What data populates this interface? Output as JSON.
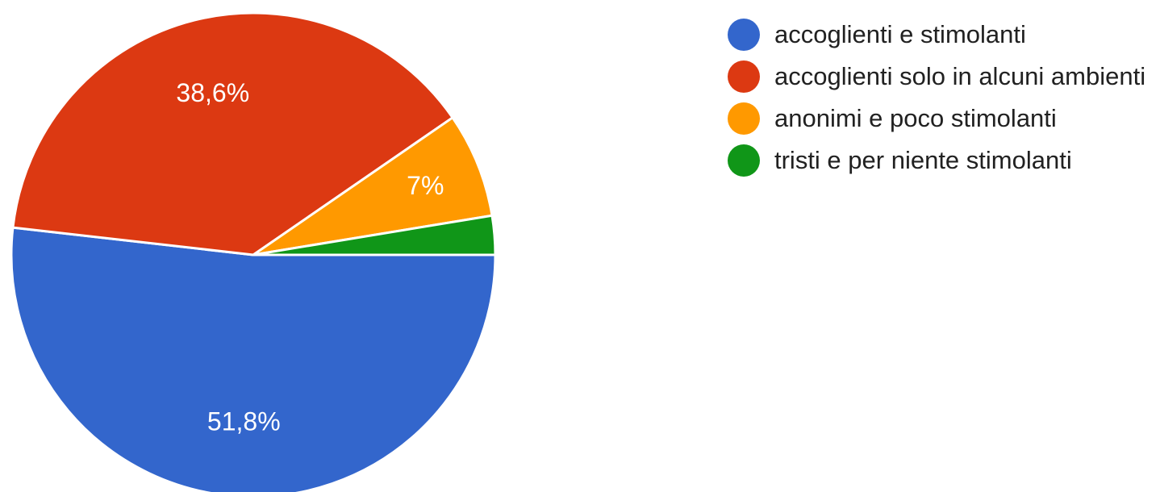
{
  "chart_data": {
    "type": "pie",
    "slices": [
      {
        "label": "accoglienti e stimolanti",
        "value": 51.8,
        "display": "51,8%",
        "color": "#3366cc"
      },
      {
        "label": "accoglienti solo in alcuni ambienti",
        "value": 38.6,
        "display": "38,6%",
        "color": "#dc3912"
      },
      {
        "label": "anonimi e poco stimolanti",
        "value": 7.0,
        "display": "7%",
        "color": "#ff9900"
      },
      {
        "label": "tristi e per niente stimolanti",
        "value": 2.6,
        "display": "",
        "color": "#109618"
      }
    ],
    "start_angle_deg": 0,
    "direction": "clockwise",
    "legend_position": "right"
  }
}
